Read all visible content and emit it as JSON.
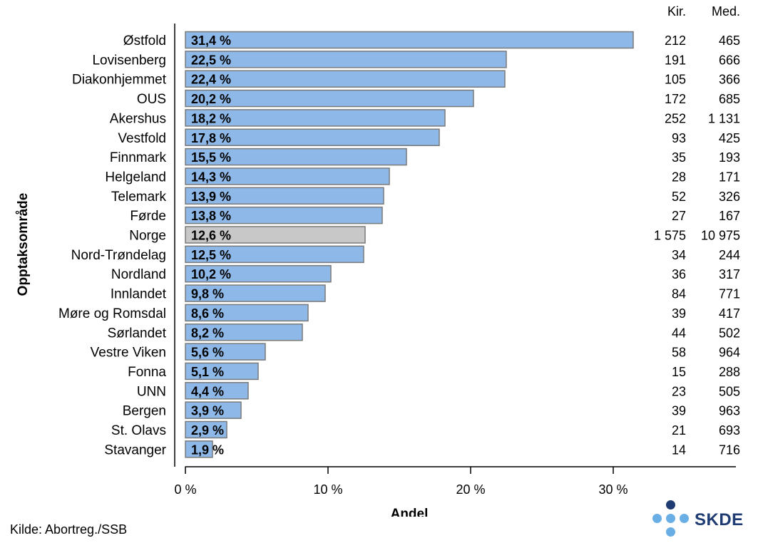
{
  "chart_data": {
    "type": "bar",
    "orientation": "horizontal",
    "ylabel": "Opptaksområde",
    "xlabel": "Andel",
    "xlim": [
      0,
      37
    ],
    "xticks": [
      0,
      10,
      20,
      30
    ],
    "xtick_labels": [
      "0 %",
      "10 %",
      "20 %",
      "30 %"
    ],
    "categories": [
      "Østfold",
      "Lovisenberg",
      "Diakonhjemmet",
      "OUS",
      "Akershus",
      "Vestfold",
      "Finnmark",
      "Helgeland",
      "Telemark",
      "Førde",
      "Norge",
      "Nord-Trøndelag",
      "Nordland",
      "Innlandet",
      "Møre og Romsdal",
      "Sørlandet",
      "Vestre Viken",
      "Fonna",
      "UNN",
      "Bergen",
      "St. Olavs",
      "Stavanger"
    ],
    "values": [
      31.4,
      22.5,
      22.4,
      20.2,
      18.2,
      17.8,
      15.5,
      14.3,
      13.9,
      13.8,
      12.6,
      12.5,
      10.2,
      9.8,
      8.6,
      8.2,
      5.6,
      5.1,
      4.4,
      3.9,
      2.9,
      1.9
    ],
    "value_labels": [
      "31,4 %",
      "22,5 %",
      "22,4 %",
      "20,2 %",
      "18,2 %",
      "17,8 %",
      "15,5 %",
      "14,3 %",
      "13,9 %",
      "13,8 %",
      "12,6 %",
      "12,5 %",
      "10,2 %",
      "9,8 %",
      "8,6 %",
      "8,2 %",
      "5,6 %",
      "5,1 %",
      "4,4 %",
      "3,9 %",
      "2,9 %",
      "1,9 %"
    ],
    "highlight_category": "Norge",
    "colors": {
      "bar": "#8db8e8",
      "highlight": "#c8c8c8",
      "bar_border": "#7a7a7a"
    },
    "table_columns": [
      {
        "header": "Kir.",
        "values": [
          "212",
          "191",
          "105",
          "172",
          "252",
          "93",
          "35",
          "28",
          "52",
          "27",
          "1 575",
          "34",
          "36",
          "84",
          "39",
          "44",
          "58",
          "15",
          "23",
          "39",
          "21",
          "14"
        ]
      },
      {
        "header": "Med.",
        "values": [
          "465",
          "666",
          "366",
          "685",
          "1 131",
          "425",
          "193",
          "171",
          "326",
          "167",
          "10 975",
          "244",
          "317",
          "771",
          "417",
          "502",
          "964",
          "288",
          "505",
          "963",
          "693",
          "716"
        ]
      }
    ]
  },
  "footer": {
    "source": "Kilde: Abortreg./SSB",
    "logo_text": "SKDE"
  }
}
